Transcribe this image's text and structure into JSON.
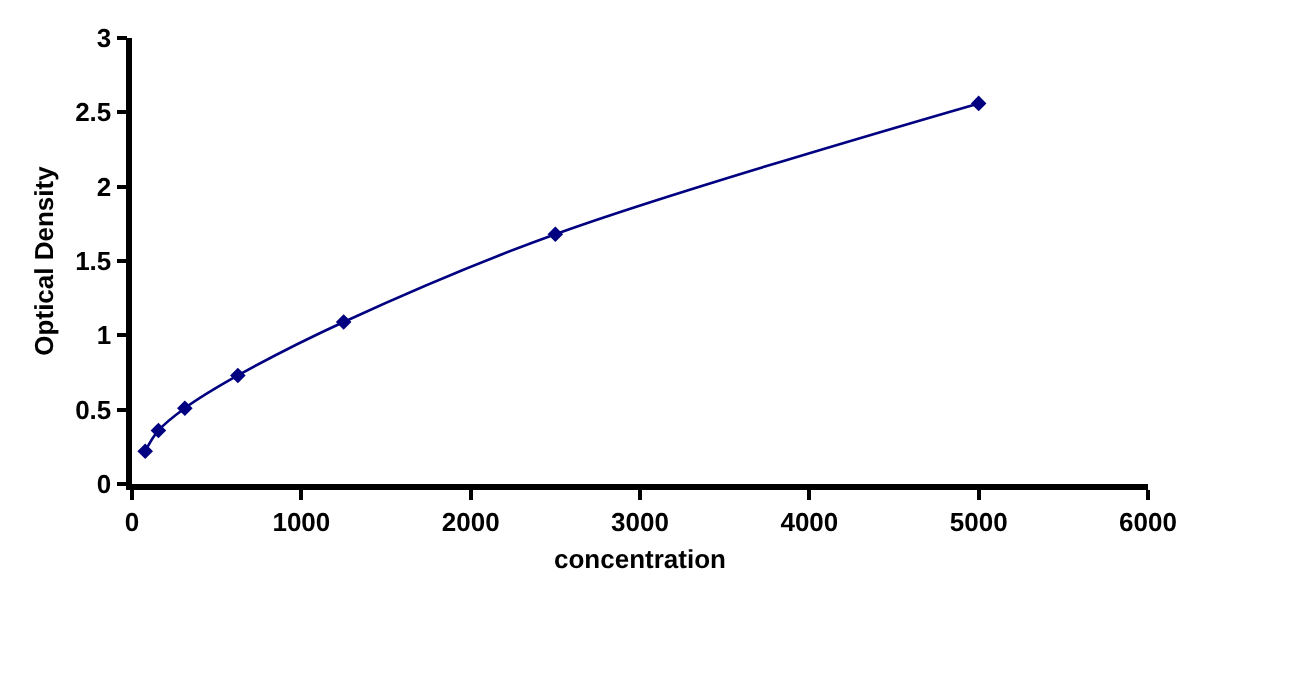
{
  "chart_data": {
    "type": "line",
    "xlabel": "concentration",
    "ylabel": "Optical Density",
    "x": [
      78,
      156,
      312,
      625,
      1250,
      2500,
      5000
    ],
    "series": [
      {
        "color": "#000080",
        "values": [
          0.22,
          0.36,
          0.51,
          0.73,
          1.09,
          1.68,
          2.56
        ]
      }
    ],
    "xlim": [
      0,
      6000
    ],
    "xticks": [
      0,
      1000,
      2000,
      3000,
      4000,
      5000,
      6000
    ],
    "ylim": [
      0,
      3
    ],
    "yticks": [
      0,
      0.5,
      1,
      1.5,
      2,
      2.5,
      3
    ],
    "marker": "diamond",
    "line_style": "solid"
  }
}
